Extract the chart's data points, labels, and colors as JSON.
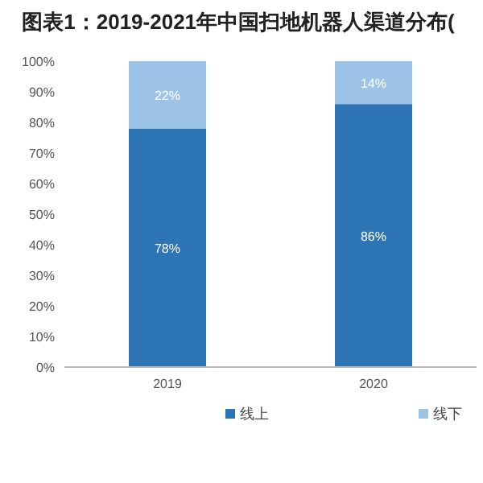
{
  "chart_data": {
    "type": "bar",
    "title": "图表1：2019-2021年中国扫地机器人渠道分布(",
    "categories": [
      "2019",
      "2020"
    ],
    "stacked": true,
    "series": [
      {
        "name": "线上",
        "color": "#2e75b6",
        "values": [
          78,
          86
        ],
        "value_labels": [
          "78%",
          "86%"
        ]
      },
      {
        "name": "线下",
        "color": "#9dc3e6",
        "values": [
          22,
          14
        ],
        "value_labels": [
          "22%",
          "14%"
        ]
      }
    ],
    "ylim": [
      0,
      100
    ],
    "yticks": [
      {
        "value": 0,
        "label": "0%"
      },
      {
        "value": 10,
        "label": "10%"
      },
      {
        "value": 20,
        "label": "20%"
      },
      {
        "value": 30,
        "label": "30%"
      },
      {
        "value": 40,
        "label": "40%"
      },
      {
        "value": 50,
        "label": "50%"
      },
      {
        "value": 60,
        "label": "60%"
      },
      {
        "value": 70,
        "label": "70%"
      },
      {
        "value": 80,
        "label": "80%"
      },
      {
        "value": 90,
        "label": "90%"
      },
      {
        "value": 100,
        "label": "100%"
      }
    ],
    "grid": false,
    "legend": "bottom"
  }
}
